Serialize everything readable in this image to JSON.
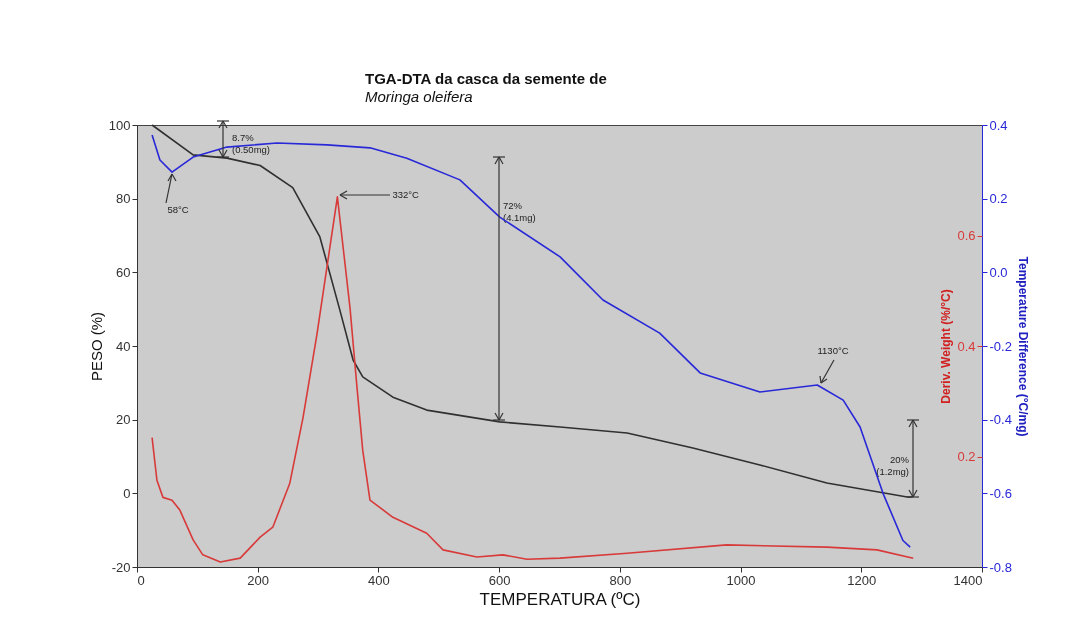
{
  "chart_data": {
    "type": "line",
    "title": "TGA-DTA da casca da semente de",
    "subtitle": "Moringa oleifera",
    "xlabel": "TEMPERATURA (ºC)",
    "ylabel": "PESO (%)",
    "y2label": "Temperature Difference (°C/mg)",
    "y3label": "Deriv. Weight (%/°C)",
    "xlim": [
      0,
      1400
    ],
    "xticks": [
      0,
      200,
      400,
      600,
      800,
      1000,
      1200,
      1400
    ],
    "ylim": [
      -20,
      100
    ],
    "yticks": [
      -20,
      0,
      20,
      40,
      60,
      80,
      100
    ],
    "y2lim": [
      -0.8,
      0.4
    ],
    "y2ticks": [
      -0.8,
      -0.6,
      -0.4,
      -0.2,
      {
        "value": 0,
        "label": "0.0"
      },
      0.2,
      0.4
    ],
    "y3lim": [
      0,
      0.8
    ],
    "y3ticks": [
      0.2,
      0.4,
      0.6
    ],
    "grid": false,
    "legend": false,
    "marker": "none",
    "line_style": "solid",
    "series": [
      {
        "color": "#303030",
        "x": [
          25,
          93,
          149,
          204,
          258,
          303,
          336,
          358,
          374,
          424,
          480,
          601,
          701,
          812,
          921,
          1032,
          1143,
          1276,
          1285
        ],
        "values": [
          100,
          91.9,
          91,
          89,
          83,
          69.6,
          49.8,
          36.2,
          31.6,
          26.1,
          22.6,
          19.4,
          18,
          16.4,
          12.3,
          7.7,
          2.8,
          -1,
          -1
        ]
      },
      {
        "color": "#2828d8",
        "axis": "y2",
        "x": [
          25,
          38,
          58,
          93,
          149,
          232,
          315,
          386,
          447,
          535,
          601,
          701,
          772,
          866,
          933,
          1032,
          1127,
          1170,
          1198,
          1236,
          1269,
          1281
        ],
        "values": [
          0.373,
          0.305,
          0.272,
          0.313,
          0.34,
          0.351,
          0.346,
          0.338,
          0.31,
          0.251,
          0.15,
          0.042,
          -0.075,
          -0.165,
          -0.273,
          -0.325,
          -0.306,
          -0.347,
          -0.42,
          -0.6,
          -0.728,
          -0.746
        ]
      },
      {
        "color": "#d83a3a",
        "axis": "y3",
        "x": [
          25,
          33,
          43,
          58,
          71,
          93,
          109,
          138,
          171,
          204,
          225,
          253,
          275,
          298,
          332,
          353,
          364,
          374,
          386,
          424,
          480,
          507,
          563,
          606,
          646,
          701,
          812,
          977,
          1143,
          1226,
          1286
        ],
        "values": [
          0.234,
          0.157,
          0.126,
          0.121,
          0.103,
          0.049,
          0.022,
          0.009,
          0.016,
          0.054,
          0.072,
          0.151,
          0.27,
          0.42,
          0.67,
          0.468,
          0.331,
          0.211,
          0.121,
          0.09,
          0.061,
          0.031,
          0.018,
          0.022,
          0.014,
          0.016,
          0.025,
          0.04,
          0.036,
          0.031,
          0.016
        ]
      }
    ],
    "annotations": [
      "8.7%\n(0.50mg)",
      {
        "text": "58°C",
        "x": 58,
        "y": 87.2
      },
      {
        "text": "332°C",
        "x": 332,
        "y": 81
      },
      "72%\n(4.1mg)",
      {
        "text": "1130°C",
        "x": 1130,
        "y": 29.4
      },
      "20%\n(1.2mg)"
    ]
  }
}
